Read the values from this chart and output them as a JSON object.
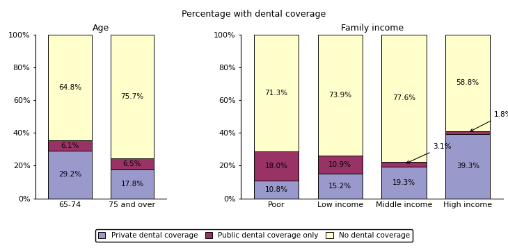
{
  "title": "Percentage with dental coverage",
  "age_title": "Age",
  "income_title": "Family income",
  "age_categories": [
    "65-74",
    "75 and over"
  ],
  "income_categories": [
    "Poor",
    "Low income",
    "Middle income",
    "High income"
  ],
  "age_data": {
    "private": [
      29.2,
      17.8
    ],
    "public": [
      6.1,
      6.5
    ],
    "no_dental": [
      64.8,
      75.7
    ]
  },
  "income_data": {
    "private": [
      10.8,
      15.2,
      19.3,
      39.3
    ],
    "public": [
      18.0,
      10.9,
      3.1,
      1.8
    ],
    "no_dental": [
      71.3,
      73.9,
      77.6,
      58.8
    ]
  },
  "colors": {
    "private": "#9999cc",
    "public": "#993366",
    "no_dental": "#ffffcc"
  },
  "legend_labels": [
    "Private dental coverage",
    "Public dental coverage only",
    "No dental coverage"
  ],
  "ylim": [
    0,
    100
  ],
  "yticks": [
    0,
    20,
    40,
    60,
    80,
    100
  ],
  "yticklabels": [
    "0%",
    "20%",
    "40%",
    "60%",
    "80%",
    "100%"
  ]
}
